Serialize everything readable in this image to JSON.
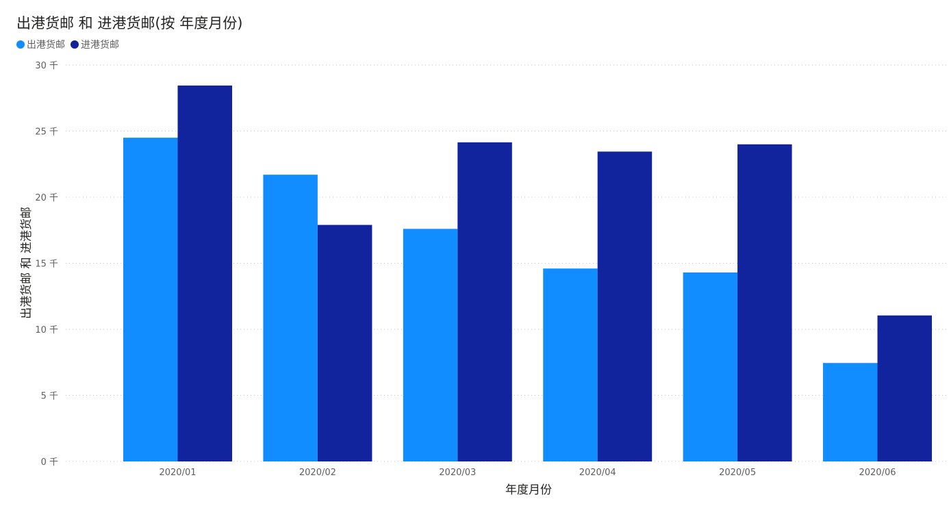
{
  "chart_data": {
    "type": "bar",
    "title": "出港货邮 和 进港货邮(按 年度月份)",
    "xlabel": "年度月份",
    "ylabel": "出港货邮 和 进港货邮",
    "categories": [
      "2020/01",
      "2020/02",
      "2020/03",
      "2020/04",
      "2020/05",
      "2020/06"
    ],
    "series": [
      {
        "name": "出港货邮",
        "color": "#118dff",
        "values": [
          24500,
          21700,
          17600,
          14600,
          14300,
          7450
        ]
      },
      {
        "name": "进港货邮",
        "color": "#12239e",
        "values": [
          28450,
          17900,
          24150,
          23450,
          24000,
          11050
        ]
      }
    ],
    "ylim": [
      0,
      30000
    ],
    "yticks": [
      0,
      5000,
      10000,
      15000,
      20000,
      25000,
      30000
    ],
    "ytick_labels": [
      "0 千",
      "5 千",
      "10 千",
      "15 千",
      "20 千",
      "25 千",
      "30 千"
    ],
    "grid": true,
    "legend_position": "top-left"
  }
}
